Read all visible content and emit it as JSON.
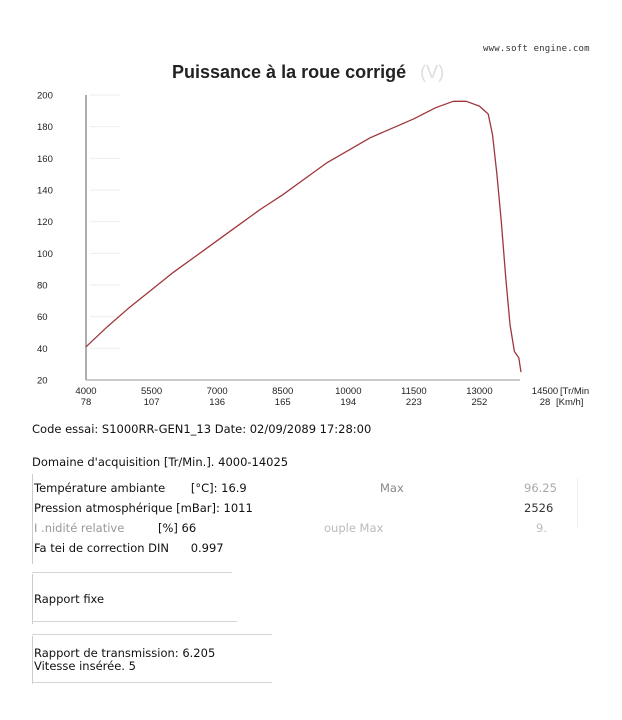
{
  "header": {
    "url": "www.soft engine.com",
    "title": "Puissance à la roue corrigé",
    "title_suffix": "(V)"
  },
  "chart_data": {
    "type": "line",
    "title": "Puissance à la roue corrigé",
    "xlabel": "[Tr/Min] / [Km/h]",
    "ylabel": "",
    "x_ticks_rpm": [
      "4000",
      "5500",
      "7000",
      "8500",
      "10000",
      "11500",
      "13000",
      "14500"
    ],
    "x_ticks_speed": [
      "78",
      "107",
      "136",
      "165",
      "194",
      "223",
      "252",
      "28"
    ],
    "x_unit_rpm": "[Tr/Min",
    "x_unit_speed": "[Km/h]",
    "y_ticks": [
      "200",
      "180",
      "160",
      "140",
      "120",
      "100",
      "80",
      "60",
      "40",
      "20"
    ],
    "xlim": [
      4000,
      14500
    ],
    "ylim": [
      20,
      200
    ],
    "grid": false,
    "line_color": "#a0363c",
    "series": [
      {
        "name": "Puissance à la roue corrigé",
        "x": [
          4000,
          4500,
          5000,
          5500,
          6000,
          6500,
          7000,
          7500,
          8000,
          8500,
          9000,
          9500,
          10000,
          10500,
          11000,
          11500,
          12000,
          12400,
          12700,
          13000,
          13200,
          13300,
          13400,
          13500,
          13600,
          13700,
          13800,
          13900,
          13950
        ],
        "values": [
          41,
          54,
          66,
          77,
          88,
          98,
          108,
          118,
          128,
          137,
          147,
          157,
          165,
          173,
          179,
          185,
          192,
          196,
          196,
          193,
          188,
          175,
          150,
          120,
          85,
          55,
          38,
          34,
          25
        ]
      }
    ]
  },
  "info": {
    "code_line": "Code essai: S1000RR-GEN1_13  Date: 02/09/2089 17:28:00",
    "domain_line": "Domaine d'acquisition [Tr/Min.]. 4000-14025",
    "conditions": [
      {
        "label": "Température ambiante",
        "unit": "[°C]:",
        "value": "16.9"
      },
      {
        "label": "Pression atmosphérique [mBar]:",
        "unit": "",
        "value": "1011"
      },
      {
        "label": "I  .nidité relative",
        "unit": "[%]",
        "value": "66"
      },
      {
        "label": "Fa tei  de correction DIN",
        "unit": "",
        "value": "0.997"
      }
    ],
    "right_column": [
      {
        "label": "Max",
        "value": "96.25"
      },
      {
        "label": "",
        "value": "2526"
      },
      {
        "label": "ouple Max",
        "value": "9."
      }
    ],
    "rapport_fixe": "Rapport fixe",
    "transmission_line": "Rapport de transmission: 6.205",
    "gear_line": "Vitesse insérée. 5"
  }
}
